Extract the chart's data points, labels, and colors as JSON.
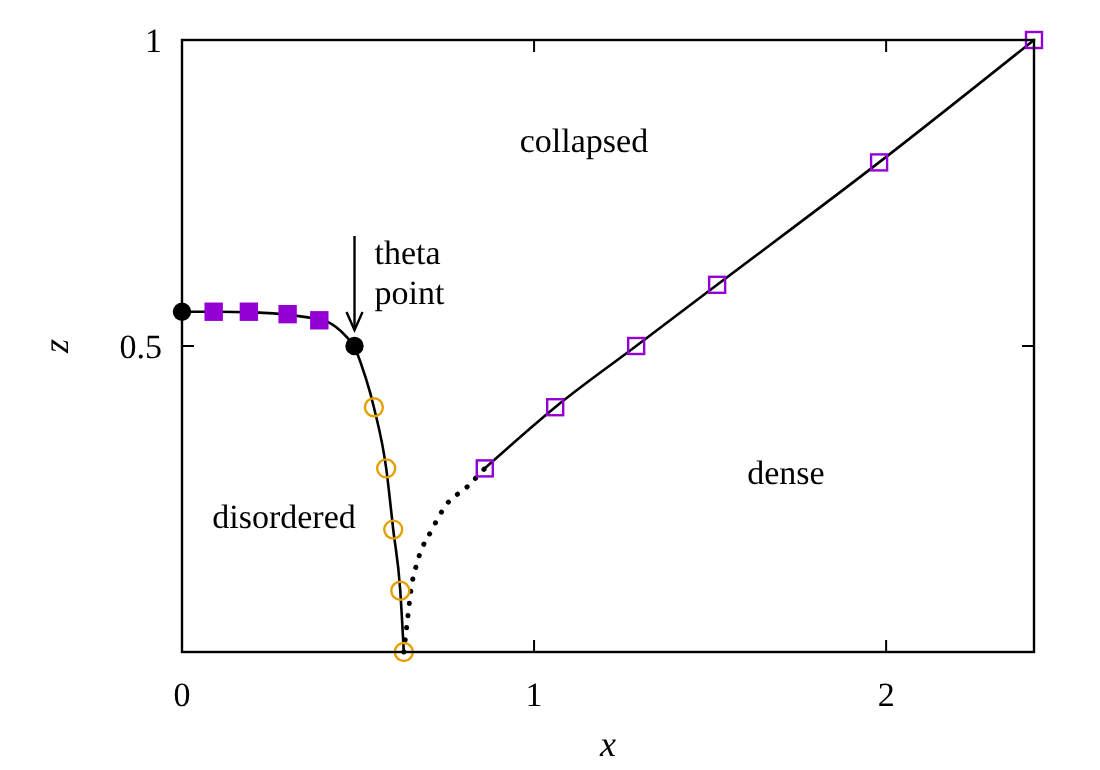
{
  "chart_data": {
    "type": "line",
    "xlabel": "x",
    "ylabel": "z",
    "xlim": [
      0,
      2.42
    ],
    "ylim": [
      0,
      1
    ],
    "xticks": [
      0,
      1,
      2
    ],
    "yticks": [
      0.5,
      1
    ],
    "grid": false,
    "annotations": [
      "collapsed",
      "dense",
      "disordered",
      {
        "text": "theta point",
        "x": 0.49,
        "y": 0.5
      }
    ],
    "series": [
      {
        "color": "#000000",
        "marker": "none",
        "line_style": "solid",
        "x": [
          0,
          0.1,
          0.2,
          0.4,
          0.45,
          0.49
        ],
        "values": [
          0.556,
          0.556,
          0.555,
          0.542,
          0.525,
          0.5
        ]
      },
      {
        "color": "#000000",
        "marker": "circle",
        "colors": [
          null,
          "#e69f00",
          "#e69f00",
          "#e69f00",
          "#e69f00",
          "#e69f00"
        ],
        "line_style": "solid",
        "x": [
          0.49,
          0.545,
          0.58,
          0.6,
          0.62,
          0.63
        ],
        "values": [
          0.5,
          0.4,
          0.3,
          0.2,
          0.1,
          0
        ]
      },
      {
        "color": "#000000",
        "marker": "none",
        "line_style": "dotted",
        "x": [
          0.63,
          0.64,
          0.65,
          0.67,
          0.71,
          0.75,
          0.81,
          0.86
        ],
        "values": [
          0,
          0.05,
          0.1,
          0.15,
          0.2,
          0.24,
          0.27,
          0.3
        ]
      },
      {
        "color": "#000000",
        "marker": "square",
        "colors": [
          "#9400d3",
          "#9400d3",
          "#9400d3",
          "#9400d3",
          "#9400d3",
          "#9400d3"
        ],
        "line_style": "solid",
        "x": [
          0.86,
          1.06,
          1.29,
          1.52,
          1.98,
          2.42
        ],
        "values": [
          0.3,
          0.4,
          0.5,
          0.6,
          0.8,
          1
        ]
      },
      {
        "type": "scatter",
        "color": "#9400d3",
        "marker": "square",
        "x": [
          0.09,
          0.19,
          0.3,
          0.39
        ],
        "values": [
          0.556,
          0.556,
          0.552,
          0.542
        ]
      },
      {
        "type": "scatter",
        "color": "#000000",
        "marker": "circle",
        "x": [
          0,
          0.49
        ],
        "values": [
          0.556,
          0.5
        ]
      }
    ]
  }
}
